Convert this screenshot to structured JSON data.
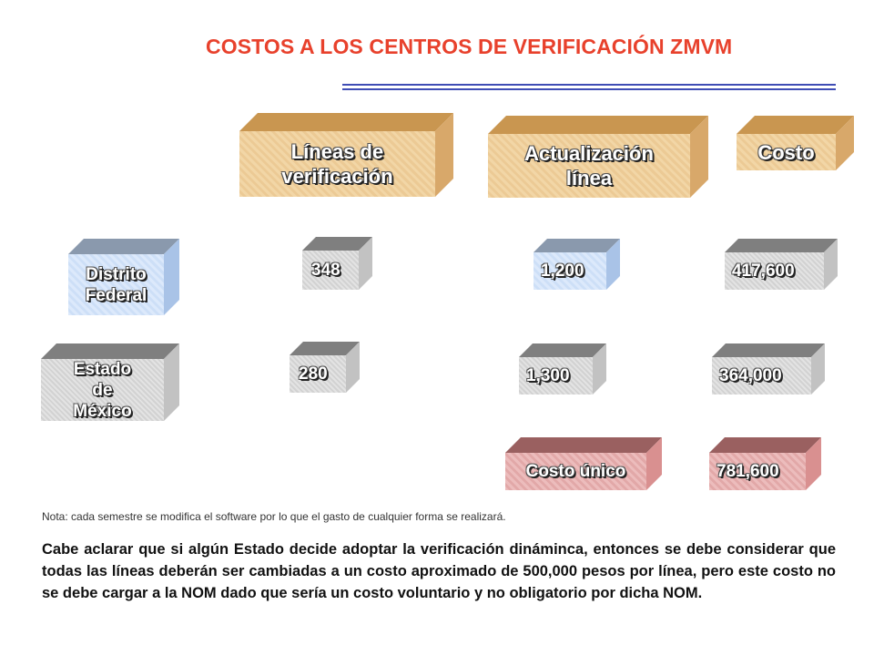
{
  "title": "COSTOS A LOS CENTROS DE VERIFICACIÓN ZMVM",
  "headers": {
    "lineas": "Líneas de verificación",
    "actualizacion": "Actualización línea",
    "costo": "Costo"
  },
  "rows": [
    {
      "label": "Distrito Federal",
      "lineas": "348",
      "actualizacion": "1,200",
      "costo": "417,600"
    },
    {
      "label": "Estado de México",
      "lineas": "280",
      "actualizacion": "1,300",
      "costo": "364,000"
    }
  ],
  "total": {
    "label": "Costo único",
    "value": "781,600"
  },
  "note": "Nota: cada semestre se modifica el software por lo que el gasto de cualquier forma se realizará.",
  "paragraph": "Cabe aclarar que si algún Estado decide adoptar la verificación dináminca, entonces se debe considerar que todas las líneas deberán ser cambiadas a un costo aproximado de 500,000 pesos por línea, pero este costo no se debe cargar a la NOM dado que sería un costo voluntario y no obligatorio por dicha NOM.",
  "colors": {
    "title": "#e8412c",
    "rule": "#3f4db5",
    "header_box": "#f2d6a6",
    "state_box": "#dce9fb",
    "value_box": "#e3e3e3",
    "total_box": "#ecbcbc"
  }
}
